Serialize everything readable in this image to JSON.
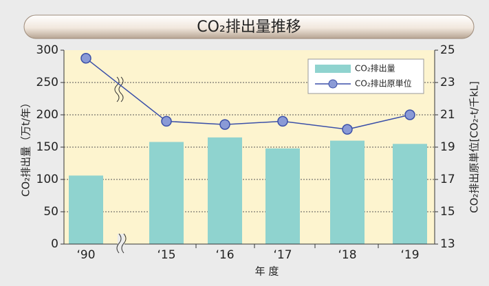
{
  "chart_data": {
    "type": "bar_line",
    "title": "CO₂排出量推移",
    "categories": [
      "‘90",
      "‘15",
      "‘16",
      "‘17",
      "‘18",
      "‘19"
    ],
    "xlabel": "年 度",
    "ylabel": "CO₂排出量（万t/年）",
    "y2label": "CO₂排出原単位[CO₂-t/千kL]",
    "series": [
      {
        "name": "CO₂排出量",
        "type": "bar",
        "color": "#8fd3cf",
        "values": [
          106,
          158,
          165,
          148,
          160,
          155
        ]
      },
      {
        "name": "CO₂排出原単位",
        "type": "line",
        "axis": "y2",
        "color": "#3a4fa8",
        "values": [
          24.5,
          20.6,
          20.4,
          20.6,
          20.1,
          21.0
        ]
      }
    ],
    "ylim": [
      0,
      300
    ],
    "yticks": [
      0,
      50,
      100,
      150,
      200,
      250,
      300
    ],
    "y2lim": [
      13,
      25
    ],
    "y2ticks": [
      13,
      15,
      17,
      19,
      21,
      23,
      25
    ],
    "grid": true,
    "legend": "upper right"
  }
}
